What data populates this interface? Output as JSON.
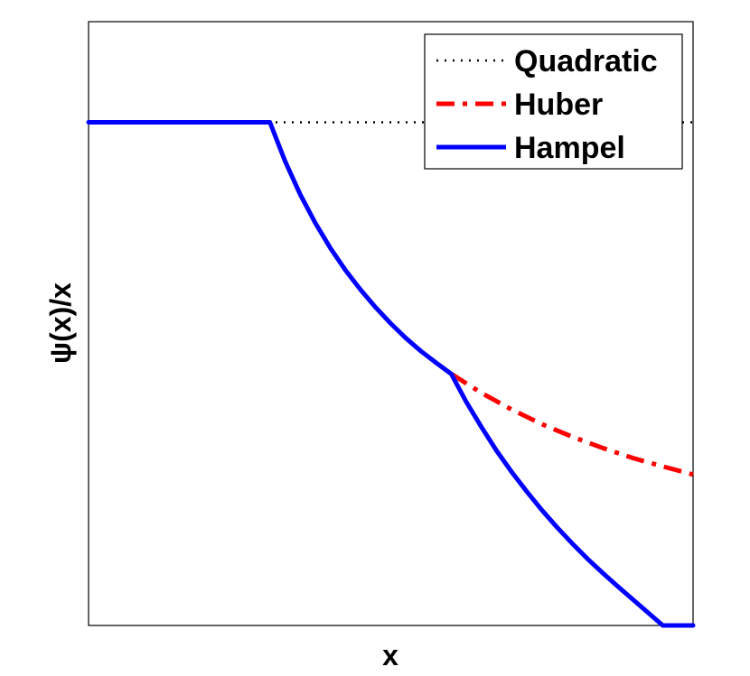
{
  "chart_data": {
    "type": "line",
    "xlabel": "x",
    "ylabel": "ψ(x)/x",
    "xlim": [
      0,
      10
    ],
    "ylim": [
      0,
      1.2
    ],
    "grid": false,
    "legend_position": "top-right",
    "series": [
      {
        "name": "Quadratic",
        "color": "#000000",
        "style": "dotted",
        "x": [
          0,
          10
        ],
        "y": [
          1,
          1
        ]
      },
      {
        "name": "Huber",
        "color": "#ff0000",
        "style": "dashdot",
        "x": [
          6,
          6.5,
          7,
          7.5,
          8,
          8.5,
          9,
          9.5,
          10
        ],
        "y": [
          0.5,
          0.462,
          0.429,
          0.4,
          0.375,
          0.353,
          0.333,
          0.316,
          0.3
        ]
      },
      {
        "name": "Hampel",
        "color": "#0000ff",
        "style": "solid",
        "x": [
          0,
          3,
          3.25,
          3.5,
          3.75,
          4,
          4.25,
          4.5,
          4.75,
          5,
          5.25,
          5.5,
          5.75,
          6,
          6.25,
          6.5,
          6.75,
          7,
          7.25,
          7.5,
          7.75,
          8,
          8.25,
          8.5,
          8.75,
          9,
          9.5,
          10
        ],
        "y": [
          1,
          1,
          0.923,
          0.857,
          0.8,
          0.75,
          0.706,
          0.667,
          0.632,
          0.6,
          0.571,
          0.545,
          0.522,
          0.5,
          0.444,
          0.394,
          0.347,
          0.305,
          0.266,
          0.229,
          0.195,
          0.163,
          0.133,
          0.105,
          0.078,
          0.052,
          0,
          0
        ]
      }
    ]
  }
}
